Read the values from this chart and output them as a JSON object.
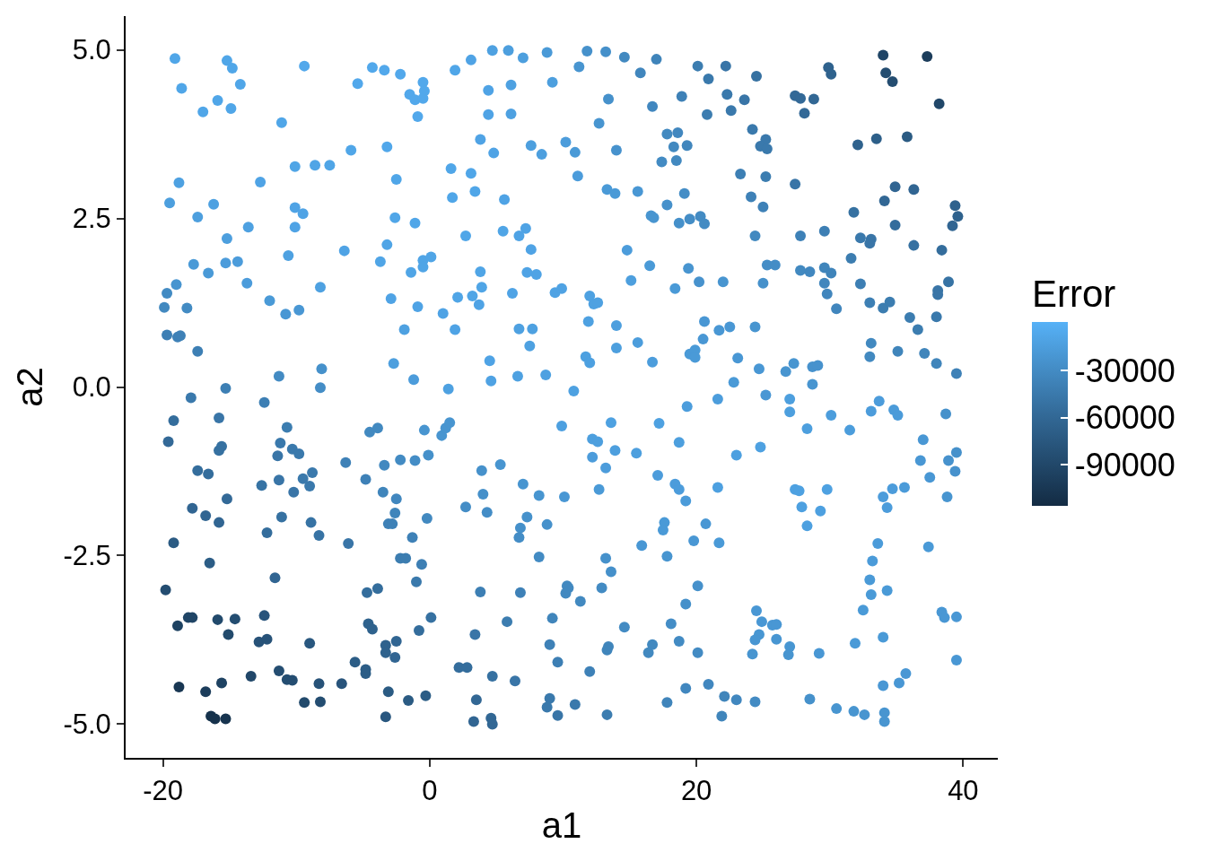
{
  "chart_data": {
    "type": "scatter",
    "xlabel": "a1",
    "ylabel": "a2",
    "clabel": "Error",
    "marker": "circle",
    "xlim": [
      -22.8,
      42.6
    ],
    "ylim": [
      -5.5,
      5.5
    ],
    "xticks": [
      -20,
      0,
      20,
      40
    ],
    "yticks": [
      {
        "value": -5,
        "label": "-5.0"
      },
      {
        "value": -2.5,
        "label": "-2.5"
      },
      {
        "value": 0,
        "label": "0.0"
      },
      {
        "value": 2.5,
        "label": "2.5"
      },
      {
        "value": 5,
        "label": "5.0"
      }
    ],
    "clim": [
      -116000,
      1000
    ],
    "cticks": [
      -90000,
      -60000,
      -30000
    ],
    "x": [
      -19.1,
      -15.2,
      -14.8,
      -14.2,
      -18.6,
      -15.9,
      -17.0,
      -14.9,
      -11.1,
      -9.4,
      -5.4,
      -4.3,
      -3.4,
      -2.2,
      -1.5,
      -1.1,
      -0.9,
      -5.9,
      -3.2,
      -10.1,
      -8.6,
      -7.5,
      -12.7,
      -2.5,
      -18.8,
      -19.5,
      -16.2,
      -17.4,
      -10.1,
      -9.5,
      -10.1,
      -13.6,
      -15.2,
      -2.6,
      -1.1,
      -6.4,
      -3.2,
      -10.6,
      -3.7,
      -1.4,
      -17.7,
      -15.3,
      -14.4,
      -16.6,
      -13.7,
      -19.0,
      -19.7,
      -19.9,
      -18.2,
      -12.0,
      -10.8,
      -9.8,
      -8.2,
      -2.9,
      -0.9,
      -1.9,
      -19.7,
      -18.9,
      -18.7,
      -17.4,
      -2.7,
      -1.2,
      -11.3,
      -8.1,
      -8.2,
      -15.3,
      -0.5,
      -0.4,
      -0.5,
      -0.5,
      0.1,
      -0.5,
      1.9,
      3.1,
      4.7,
      5.9,
      7.0,
      8.8,
      11.8,
      11.2,
      13.2,
      14.6,
      15.8,
      17.0,
      20.1,
      20.9,
      9.2,
      4.4,
      6.1,
      4.4,
      6.1,
      13.4,
      18.9,
      16.7,
      20.8,
      12.7,
      3.8,
      4.8,
      7.6,
      8.4,
      10.2,
      10.9,
      14.0,
      17.8,
      18.6,
      18.3,
      19.3,
      17.4,
      18.5,
      1.6,
      3.1,
      11.1,
      1.7,
      3.4,
      5.6,
      13.3,
      13.9,
      15.6,
      19.1,
      17.8,
      16.6,
      16.8,
      18.7,
      19.5,
      20.3,
      20.6,
      2.7,
      5.5,
      6.7,
      7.2,
      7.6,
      14.8,
      16.5,
      19.4,
      20.2,
      15.1,
      18.4,
      3.8,
      7.3,
      8.0,
      3.9,
      2.1,
      3.2,
      3.7,
      6.2,
      9.4,
      9.9,
      12.0,
      12.3,
      12.6,
      1.0,
      1.9,
      6.7,
      7.7,
      7.5,
      11.9,
      14.0,
      14.0,
      15.6,
      20.6,
      20.5,
      19.5,
      19.9,
      19.9,
      11.7,
      12.0,
      16.7,
      4.5,
      4.6,
      6.6,
      8.7,
      1.4,
      10.8,
      22.2,
      24.5,
      29.9,
      30.1,
      34.0,
      37.3,
      34.2,
      34.7,
      38.2,
      22.3,
      23.6,
      22.6,
      27.4,
      27.8,
      28.8,
      28.1,
      24.2,
      25.2,
      24.8,
      25.3,
      32.1,
      33.5,
      35.8,
      23.3,
      25.2,
      27.4,
      24.1,
      25.0,
      34.9,
      36.3,
      34.1,
      31.8,
      39.4,
      39.6,
      39.2,
      34.9,
      24.4,
      27.8,
      29.6,
      32.3,
      33.1,
      33.0,
      36.3,
      38.4,
      31.6,
      25.3,
      25.9,
      27.8,
      28.5,
      29.6,
      30.1,
      29.6,
      29.8,
      30.5,
      32.3,
      33.0,
      34.0,
      34.5,
      38.9,
      38.1,
      38.1,
      36.0,
      38.0,
      36.6,
      22.0,
      25.0,
      21.7,
      22.5,
      24.4,
      23.1,
      24.7,
      26.7,
      27.3,
      28.7,
      29.1,
      28.7,
      22.8,
      25.2,
      33.1,
      33.0,
      35.1,
      37.1,
      38.0,
      39.5,
      -17.9,
      -12.4,
      -19.2,
      -15.8,
      -19.6,
      -15.8,
      -15.6,
      -10.7,
      -11.2,
      -10.3,
      -9.8,
      -11.4,
      -4.5,
      -3.9,
      -6.3,
      -3.4,
      -2.2,
      -1.1,
      -17.4,
      -16.6,
      -12.6,
      -11.3,
      -9.5,
      -8.8,
      -9.0,
      -10.2,
      -4.8,
      -3.5,
      -2.5,
      -2.6,
      -3.1,
      -2.8,
      -15.2,
      -17.8,
      -16.8,
      -15.8,
      -11.1,
      -8.9,
      -12.2,
      -8.3,
      -6.1,
      -1.3,
      -19.2,
      -16.5,
      -2.2,
      -1.8,
      -0.6,
      -11.6,
      -1.0,
      -19.8,
      -4.7,
      -3.9,
      -18.9,
      -18.1,
      -17.8,
      -15.9,
      -14.6,
      -15.1,
      -12.4,
      -12.8,
      -12.2,
      -9.0,
      -4.6,
      -4.3,
      -0.8,
      -3.3,
      -3.3,
      -2.5,
      -2.6,
      -5.6,
      -4.8,
      -4.8,
      -11.3,
      -10.7,
      -10.3,
      -13.4,
      -15.6,
      -16.8,
      -18.8,
      -8.3,
      -6.6,
      -3.1,
      -1.6,
      -0.3,
      -9.4,
      -8.2,
      -16.4,
      -16.1,
      -15.3,
      -3.3,
      19.3,
      -0.4,
      0.9,
      1.2,
      1.5,
      -0.1,
      9.9,
      13.6,
      17.2,
      18.7,
      12.2,
      12.6,
      13.9,
      15.5,
      12.2,
      13.2,
      17.1,
      18.4,
      18.7,
      19.2,
      12.7,
      3.9,
      5.3,
      4.0,
      2.7,
      4.3,
      7.0,
      8.2,
      10.1,
      -0.2,
      7.3,
      6.8,
      6.7,
      8.8,
      8.2,
      17.6,
      17.5,
      19.8,
      20.7,
      15.9,
      17.8,
      13.2,
      13.6,
      3.8,
      6.8,
      10.3,
      10.4,
      10.2,
      11.3,
      12.9,
      20.1,
      19.2,
      0.1,
      3.4,
      5.8,
      9.2,
      14.6,
      18.1,
      9.0,
      13.4,
      13.3,
      16.7,
      16.4,
      18.7,
      20.1,
      9.6,
      12.0,
      2.2,
      2.8,
      4.7,
      6.4,
      3.5,
      9.0,
      8.8,
      10.9,
      9.6,
      13.3,
      17.8,
      19.2,
      20.9,
      3.3,
      4.6,
      4.7,
      21.6,
      27.0,
      27.0,
      30.1,
      28.3,
      31.5,
      33.1,
      33.7,
      34.8,
      35.1,
      38.7,
      37.0,
      36.8,
      38.9,
      39.5,
      39.4,
      37.5,
      38.8,
      23.0,
      24.8,
      21.6,
      27.4,
      27.7,
      29.8,
      27.9,
      29.3,
      28.3,
      34.0,
      34.7,
      35.6,
      34.3,
      21.7,
      33.6,
      33.2,
      37.4,
      33.0,
      33.1,
      34.3,
      32.5,
      24.5,
      24.9,
      25.7,
      26.0,
      24.7,
      24.4,
      26.0,
      24.2,
      27.0,
      26.9,
      29.2,
      31.9,
      34.0,
      38.4,
      38.6,
      39.5,
      39.5,
      22.1,
      23.0,
      24.4,
      21.9,
      28.5,
      30.5,
      31.8,
      32.6,
      34.1,
      34.1,
      34.0,
      35.2,
      35.7
    ],
    "values": [
      4.87,
      4.84,
      4.73,
      4.49,
      4.43,
      4.25,
      4.08,
      4.13,
      3.92,
      4.76,
      4.5,
      4.74,
      4.7,
      4.64,
      4.34,
      4.26,
      4.01,
      3.51,
      3.56,
      3.27,
      3.29,
      3.29,
      3.04,
      3.08,
      3.03,
      2.73,
      2.71,
      2.52,
      2.66,
      2.57,
      2.37,
      2.37,
      2.2,
      2.51,
      2.43,
      2.02,
      2.11,
      1.95,
      1.86,
      1.7,
      1.82,
      1.84,
      1.86,
      1.69,
      1.54,
      1.52,
      1.39,
      1.18,
      1.17,
      1.28,
      1.08,
      1.14,
      1.48,
      1.31,
      1.19,
      0.85,
      0.77,
      0.74,
      0.76,
      0.53,
      0.35,
      0.11,
      0.16,
      0.27,
      -0.01,
      -0.02,
      4.52,
      4.39,
      4.28,
      1.88,
      1.93,
      1.78,
      4.7,
      4.85,
      4.99,
      4.99,
      4.88,
      4.96,
      4.98,
      4.75,
      4.97,
      4.89,
      4.66,
      4.86,
      4.76,
      4.57,
      4.52,
      4.4,
      4.48,
      4.04,
      4.05,
      4.27,
      4.31,
      4.16,
      4.04,
      3.91,
      3.67,
      3.47,
      3.58,
      3.45,
      3.63,
      3.48,
      3.51,
      3.75,
      3.77,
      3.56,
      3.58,
      3.34,
      3.36,
      3.24,
      3.17,
      3.13,
      2.81,
      2.9,
      2.78,
      2.93,
      2.87,
      2.9,
      2.87,
      2.7,
      2.54,
      2.51,
      2.43,
      2.49,
      2.53,
      2.42,
      2.24,
      2.31,
      2.24,
      2.35,
      2.04,
      2.03,
      1.8,
      1.76,
      1.56,
      1.58,
      1.46,
      1.71,
      1.7,
      1.67,
      1.48,
      1.33,
      1.35,
      1.22,
      1.39,
      1.4,
      1.46,
      1.35,
      1.23,
      1.25,
      1.09,
      0.85,
      0.86,
      0.86,
      0.61,
      0.97,
      0.91,
      0.58,
      0.66,
      0.97,
      0.71,
      0.49,
      0.55,
      0.44,
      0.45,
      0.36,
      0.37,
      0.39,
      0.09,
      0.16,
      0.18,
      -0.03,
      -0.06,
      4.76,
      4.61,
      4.74,
      4.64,
      4.92,
      4.9,
      4.66,
      4.53,
      4.2,
      4.34,
      4.26,
      4.1,
      4.32,
      4.28,
      4.27,
      4.06,
      3.82,
      3.67,
      3.57,
      3.53,
      3.59,
      3.68,
      3.71,
      3.16,
      3.12,
      3.01,
      2.82,
      2.67,
      2.97,
      2.93,
      2.76,
      2.59,
      2.69,
      2.53,
      2.39,
      2.4,
      2.24,
      2.24,
      2.31,
      2.21,
      2.19,
      2.13,
      2.1,
      2.03,
      1.91,
      1.81,
      1.81,
      1.73,
      1.71,
      1.77,
      1.69,
      1.54,
      1.38,
      1.16,
      1.53,
      1.25,
      1.17,
      1.26,
      1.56,
      1.43,
      1.37,
      1.03,
      1.04,
      0.85,
      1.56,
      1.54,
      0.84,
      0.89,
      0.89,
      0.43,
      0.27,
      0.23,
      0.35,
      0.3,
      0.32,
      0.04,
      0.07,
      -0.12,
      0.65,
      0.45,
      0.53,
      0.5,
      0.35,
      0.2,
      -0.16,
      -0.23,
      -0.5,
      -0.46,
      -0.81,
      -0.94,
      -0.88,
      -0.6,
      -0.83,
      -0.92,
      -0.99,
      -1.02,
      -0.67,
      -0.61,
      -1.12,
      -1.16,
      -1.08,
      -1.09,
      -1.24,
      -1.29,
      -1.46,
      -1.38,
      -1.36,
      -1.27,
      -1.47,
      -1.56,
      -1.37,
      -1.56,
      -1.66,
      -1.87,
      -2.03,
      -2.03,
      -1.66,
      -1.8,
      -1.91,
      -2.01,
      -1.93,
      -2.01,
      -2.16,
      -2.2,
      -2.32,
      -2.23,
      -2.31,
      -2.61,
      -2.54,
      -2.54,
      -2.63,
      -2.83,
      -2.89,
      -3.01,
      -3.05,
      -2.99,
      -3.54,
      -3.42,
      -3.42,
      -3.45,
      -3.44,
      -3.67,
      -3.39,
      -3.78,
      -3.74,
      -3.8,
      -3.51,
      -3.59,
      -3.61,
      -3.83,
      -3.94,
      -3.77,
      -4.01,
      -4.08,
      -4.19,
      -4.25,
      -4.21,
      -4.34,
      -4.35,
      -4.29,
      -4.39,
      -4.52,
      -4.45,
      -4.4,
      -4.4,
      -4.52,
      -4.65,
      -4.58,
      -4.68,
      -4.67,
      -4.88,
      -4.92,
      -4.92,
      -4.89,
      -0.29,
      -0.64,
      -0.72,
      -0.61,
      -0.53,
      -1.01,
      -0.58,
      -0.53,
      -0.54,
      -0.82,
      -0.77,
      -0.81,
      -0.94,
      -0.98,
      -1.04,
      -1.2,
      -1.31,
      -1.44,
      -1.52,
      -1.69,
      -1.52,
      -1.24,
      -1.15,
      -1.59,
      -1.78,
      -1.86,
      -1.44,
      -1.61,
      -1.63,
      -1.95,
      -1.93,
      -2.09,
      -2.23,
      -2.04,
      -2.52,
      -2.01,
      -2.12,
      -2.28,
      -2.03,
      -2.35,
      -2.51,
      -2.54,
      -2.74,
      -3.04,
      -3.05,
      -2.95,
      -2.98,
      -3.06,
      -3.18,
      -2.98,
      -2.95,
      -3.22,
      -3.42,
      -3.67,
      -3.48,
      -3.43,
      -3.56,
      -3.51,
      -3.82,
      -3.85,
      -3.9,
      -3.82,
      -3.94,
      -3.77,
      -3.94,
      -4.08,
      -4.22,
      -4.16,
      -4.16,
      -4.29,
      -4.36,
      -4.64,
      -4.62,
      -4.75,
      -4.71,
      -4.87,
      -4.86,
      -4.68,
      -4.47,
      -4.41,
      -4.96,
      -4.91,
      -5.0,
      -0.18,
      -0.18,
      -0.37,
      -0.42,
      -0.62,
      -0.64,
      -0.36,
      -0.21,
      -0.34,
      -0.42,
      -0.4,
      -0.78,
      -1.09,
      -1.09,
      -0.97,
      -1.25,
      -1.34,
      -1.63,
      -1.01,
      -0.89,
      -1.49,
      -1.52,
      -1.54,
      -1.52,
      -1.78,
      -1.84,
      -2.06,
      -1.63,
      -1.51,
      -1.49,
      -1.79,
      -2.31,
      -2.32,
      -2.58,
      -2.37,
      -2.86,
      -3.08,
      -3.02,
      -3.31,
      -3.32,
      -3.48,
      -3.53,
      -3.52,
      -3.67,
      -3.75,
      -3.74,
      -3.96,
      -3.85,
      -3.97,
      -3.95,
      -3.8,
      -3.71,
      -3.34,
      -3.42,
      -3.41,
      -4.05,
      -4.59,
      -4.64,
      -4.67,
      -4.88,
      -4.63,
      -4.77,
      -4.81,
      -4.86,
      -4.83,
      -4.96,
      -4.43,
      -4.39,
      -4.25
    ],
    "cvalues": [
      -8000,
      -8000,
      -8000,
      -8000,
      -8000,
      -8000,
      -8000,
      -8000,
      -8000,
      -6000,
      -6000,
      -6000,
      -6000,
      -6000,
      -6000,
      -6000,
      -6000,
      -8000,
      -7000,
      -9000,
      -9000,
      -9000,
      -10000,
      -8000,
      -12000,
      -14000,
      -12000,
      -14000,
      -10000,
      -10000,
      -10000,
      -12000,
      -14000,
      -8000,
      -8000,
      -10000,
      -9000,
      -12000,
      -9000,
      -9000,
      -18000,
      -16000,
      -16000,
      -18000,
      -16000,
      -22000,
      -30000,
      -32000,
      -30000,
      -18000,
      -20000,
      -20000,
      -12000,
      -10000,
      -10000,
      -12000,
      -40000,
      -38000,
      -38000,
      -40000,
      -14000,
      -16000,
      -30000,
      -25000,
      -28000,
      -40000,
      -6000,
      -6000,
      -6000,
      -9000,
      -9000,
      -9000,
      -8000,
      -10000,
      -12000,
      -14000,
      -14000,
      -18000,
      -25000,
      -22000,
      -26000,
      -32000,
      -34000,
      -36000,
      -42000,
      -45000,
      -14000,
      -10000,
      -12000,
      -10000,
      -12000,
      -25000,
      -38000,
      -33000,
      -42000,
      -22000,
      -10000,
      -10000,
      -14000,
      -14000,
      -16000,
      -18000,
      -24000,
      -32000,
      -33000,
      -32000,
      -34000,
      -30000,
      -32000,
      -8000,
      -8000,
      -16000,
      -8000,
      -8000,
      -10000,
      -18000,
      -18000,
      -20000,
      -28000,
      -25000,
      -22000,
      -22000,
      -26000,
      -28000,
      -30000,
      -30000,
      -8000,
      -9000,
      -10000,
      -10000,
      -10000,
      -16000,
      -18000,
      -22000,
      -24000,
      -14000,
      -18000,
      -9000,
      -10000,
      -10000,
      -9000,
      -9000,
      -9000,
      -10000,
      -10000,
      -11000,
      -11000,
      -12000,
      -12000,
      -12000,
      -10000,
      -10000,
      -12000,
      -12000,
      -12000,
      -12000,
      -14000,
      -14000,
      -15000,
      -20000,
      -20000,
      -18000,
      -18000,
      -18000,
      -13000,
      -13000,
      -15000,
      -10000,
      -11000,
      -12000,
      -12000,
      -12000,
      -12000,
      -48000,
      -52000,
      -65000,
      -65000,
      -92000,
      -100000,
      -85000,
      -85000,
      -90000,
      -45000,
      -48000,
      -45000,
      -58000,
      -58000,
      -60000,
      -58000,
      -45000,
      -45000,
      -45000,
      -45000,
      -65000,
      -68000,
      -72000,
      -40000,
      -42000,
      -48000,
      -38000,
      -38000,
      -62000,
      -62000,
      -60000,
      -52000,
      -65000,
      -65000,
      -62000,
      -55000,
      -32000,
      -38000,
      -40000,
      -45000,
      -48000,
      -48000,
      -52000,
      -55000,
      -42000,
      -28000,
      -28000,
      -32000,
      -33000,
      -35000,
      -36000,
      -34000,
      -34000,
      -34000,
      -40000,
      -40000,
      -42000,
      -42000,
      -50000,
      -48000,
      -48000,
      -42000,
      -45000,
      -42000,
      -22000,
      -25000,
      -20000,
      -20000,
      -22000,
      -20000,
      -20000,
      -22000,
      -22000,
      -24000,
      -24000,
      -22000,
      -18000,
      -20000,
      -32000,
      -32000,
      -35000,
      -35000,
      -35000,
      -38000,
      -45000,
      -40000,
      -55000,
      -48000,
      -58000,
      -52000,
      -52000,
      -42000,
      -45000,
      -45000,
      -45000,
      -48000,
      -32000,
      -32000,
      -38000,
      -32000,
      -30000,
      -28000,
      -55000,
      -55000,
      -50000,
      -48000,
      -45000,
      -45000,
      -45000,
      -48000,
      -38000,
      -35000,
      -33000,
      -35000,
      -38000,
      -38000,
      -58000,
      -62000,
      -62000,
      -62000,
      -52000,
      -50000,
      -55000,
      -50000,
      -48000,
      -38000,
      -72000,
      -70000,
      -42000,
      -42000,
      -40000,
      -62000,
      -45000,
      -85000,
      -55000,
      -55000,
      -95000,
      -92000,
      -92000,
      -88000,
      -85000,
      -88000,
      -78000,
      -80000,
      -80000,
      -75000,
      -65000,
      -65000,
      -55000,
      -65000,
      -65000,
      -62000,
      -62000,
      -70000,
      -70000,
      -70000,
      -85000,
      -85000,
      -85000,
      -90000,
      -95000,
      -100000,
      -105000,
      -80000,
      -78000,
      -72000,
      -72000,
      -70000,
      -88000,
      -85000,
      -110000,
      -110000,
      -108000,
      -75000,
      -15000,
      -22000,
      -22000,
      -22000,
      -22000,
      -26000,
      -13000,
      -12000,
      -12000,
      -14000,
      -14000,
      -14000,
      -14000,
      -14000,
      -16000,
      -16000,
      -16000,
      -16000,
      -16000,
      -17000,
      -18000,
      -25000,
      -22000,
      -26000,
      -28000,
      -28000,
      -22000,
      -22000,
      -20000,
      -32000,
      -25000,
      -26000,
      -28000,
      -25000,
      -30000,
      -18000,
      -18000,
      -20000,
      -20000,
      -20000,
      -22000,
      -25000,
      -26000,
      -40000,
      -38000,
      -32000,
      -32000,
      -32000,
      -32000,
      -30000,
      -25000,
      -26000,
      -52000,
      -48000,
      -42000,
      -35000,
      -30000,
      -28000,
      -38000,
      -35000,
      -35000,
      -32000,
      -32000,
      -30000,
      -30000,
      -40000,
      -38000,
      -55000,
      -55000,
      -52000,
      -48000,
      -60000,
      -45000,
      -45000,
      -45000,
      -48000,
      -42000,
      -35000,
      -33000,
      -33000,
      -62000,
      -60000,
      -60000,
      -15000,
      -14000,
      -14000,
      -15000,
      -14000,
      -15000,
      -16000,
      -16000,
      -17000,
      -17000,
      -25000,
      -20000,
      -20000,
      -24000,
      -25000,
      -24000,
      -20000,
      -22000,
      -13000,
      -12000,
      -13000,
      -12000,
      -12000,
      -12000,
      -13000,
      -13000,
      -13000,
      -16000,
      -16000,
      -17000,
      -16000,
      -18000,
      -17000,
      -17000,
      -18000,
      -18000,
      -18000,
      -18000,
      -18000,
      -20000,
      -20000,
      -20000,
      -20000,
      -21000,
      -21000,
      -21000,
      -22000,
      -21000,
      -22000,
      -20000,
      -18000,
      -18000,
      -20000,
      -20000,
      -20000,
      -20000,
      -35000,
      -33000,
      -30000,
      -35000,
      -25000,
      -22000,
      -22000,
      -22000,
      -22000,
      -22000,
      -20000,
      -20000,
      -20000
    ]
  }
}
